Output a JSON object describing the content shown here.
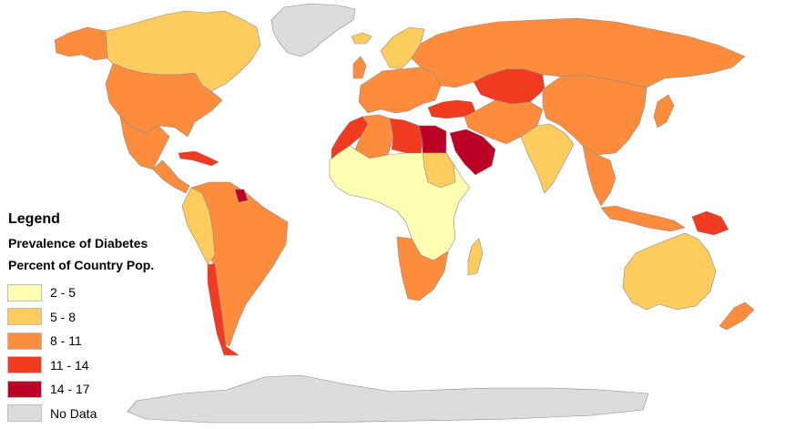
{
  "legend": {
    "title": "Legend",
    "subtitle_line1": "Prevalence of Diabetes",
    "subtitle_line2": "Percent of Country Pop.",
    "items": [
      {
        "label": "2 - 5",
        "color": "#ffffb2"
      },
      {
        "label": "5 - 8",
        "color": "#fecc5c"
      },
      {
        "label": "8 - 11",
        "color": "#fd8d3c"
      },
      {
        "label": "11 - 14",
        "color": "#f03b20"
      },
      {
        "label": "14 - 17",
        "color": "#bd0026"
      },
      {
        "label": "No Data",
        "color": "#dcdcdc"
      }
    ]
  },
  "map": {
    "regions": [
      {
        "id": "greenland",
        "class": "No Data"
      },
      {
        "id": "antarctica",
        "class": "No Data"
      },
      {
        "id": "canada",
        "class": "5 - 8"
      },
      {
        "id": "alaska",
        "class": "8 - 11"
      },
      {
        "id": "usa",
        "class": "8 - 11"
      },
      {
        "id": "mexico",
        "class": "8 - 11"
      },
      {
        "id": "central-america",
        "class": "8 - 11"
      },
      {
        "id": "caribbean",
        "class": "11 - 14"
      },
      {
        "id": "south-america",
        "class": "8 - 11"
      },
      {
        "id": "andes-west",
        "class": "5 - 8"
      },
      {
        "id": "chile",
        "class": "11 - 14"
      },
      {
        "id": "guyana",
        "class": "14 - 17"
      },
      {
        "id": "europe",
        "class": "8 - 11"
      },
      {
        "id": "scandinavia",
        "class": "5 - 8"
      },
      {
        "id": "iceland",
        "class": "5 - 8"
      },
      {
        "id": "uk",
        "class": "8 - 11"
      },
      {
        "id": "russia",
        "class": "8 - 11"
      },
      {
        "id": "kazakhstan",
        "class": "11 - 14"
      },
      {
        "id": "turkey",
        "class": "11 - 14"
      },
      {
        "id": "north-africa-west",
        "class": "11 - 14"
      },
      {
        "id": "algeria",
        "class": "8 - 11"
      },
      {
        "id": "libya",
        "class": "11 - 14"
      },
      {
        "id": "egypt",
        "class": "14 - 17"
      },
      {
        "id": "saudi-arabia",
        "class": "14 - 17"
      },
      {
        "id": "middle-east",
        "class": "8 - 11"
      },
      {
        "id": "sub-saharan-africa",
        "class": "2 - 5"
      },
      {
        "id": "west-central-africa",
        "class": "5 - 8"
      },
      {
        "id": "southern-africa",
        "class": "8 - 11"
      },
      {
        "id": "madagascar",
        "class": "5 - 8"
      },
      {
        "id": "india",
        "class": "5 - 8"
      },
      {
        "id": "china",
        "class": "8 - 11"
      },
      {
        "id": "southeast-asia",
        "class": "8 - 11"
      },
      {
        "id": "japan",
        "class": "8 - 11"
      },
      {
        "id": "indonesia",
        "class": "8 - 11"
      },
      {
        "id": "papua-new-guinea",
        "class": "11 - 14"
      },
      {
        "id": "australia",
        "class": "5 - 8"
      },
      {
        "id": "new-zealand",
        "class": "8 - 11"
      }
    ]
  }
}
